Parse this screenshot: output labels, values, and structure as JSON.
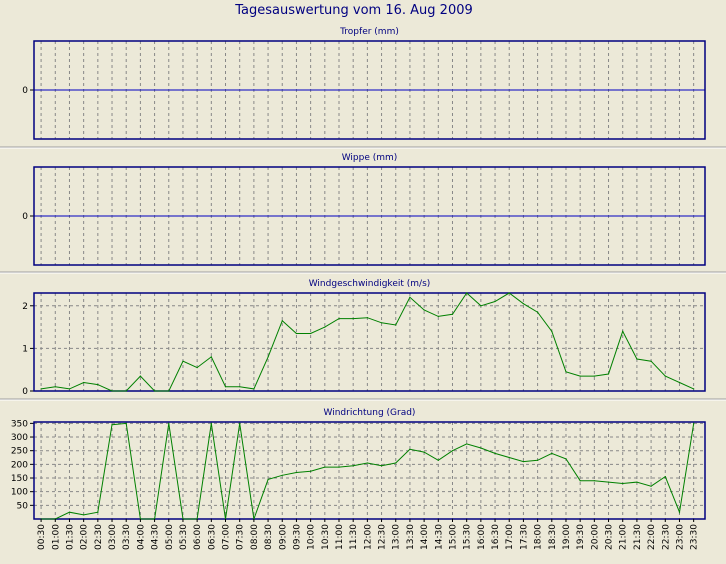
{
  "page_title": "Tagesauswertung vom 16. Aug 2009",
  "colors": {
    "background": "#ece9d8",
    "plot_bg": "#ece9d8",
    "frame": "#000080",
    "title": "#000080",
    "zero_line": "#0000c0",
    "series": "#008000",
    "grid": "#888888",
    "separator": "#ffffff"
  },
  "time_labels": [
    "00:30",
    "01:00",
    "01:30",
    "02:00",
    "02:30",
    "03:00",
    "03:30",
    "04:00",
    "04:30",
    "05:00",
    "05:30",
    "06:00",
    "06:30",
    "07:00",
    "07:30",
    "08:00",
    "08:30",
    "09:00",
    "09:30",
    "10:00",
    "10:30",
    "11:00",
    "11:30",
    "12:00",
    "12:30",
    "13:00",
    "13:30",
    "14:00",
    "14:30",
    "15:00",
    "15:30",
    "16:00",
    "16:30",
    "17:00",
    "17:30",
    "18:00",
    "18:30",
    "19:00",
    "19:30",
    "20:00",
    "20:30",
    "21:00",
    "21:30",
    "22:00",
    "22:30",
    "23:00",
    "23:30"
  ],
  "chart_data": [
    {
      "type": "line",
      "title": "Tropfer (mm)",
      "yticks": [
        0
      ],
      "ylim": [
        -1,
        1
      ],
      "grid": true,
      "series": [
        {
          "values": []
        }
      ]
    },
    {
      "type": "line",
      "title": "Wippe (mm)",
      "yticks": [
        0
      ],
      "ylim": [
        -1,
        1
      ],
      "grid": true,
      "series": [
        {
          "values": []
        }
      ]
    },
    {
      "type": "line",
      "title": "Windgeschwindigkeit (m/s)",
      "yticks": [
        2,
        1,
        0
      ],
      "ylim": [
        0,
        2.3
      ],
      "grid": true,
      "series": [
        {
          "values": [
            0.05,
            0.1,
            0.05,
            0.2,
            0.15,
            0.0,
            0.0,
            0.35,
            0.0,
            0.0,
            0.7,
            0.55,
            0.8,
            0.1,
            0.1,
            0.05,
            0.8,
            1.65,
            1.35,
            1.35,
            1.5,
            1.7,
            1.7,
            1.72,
            1.6,
            1.55,
            2.2,
            1.9,
            1.75,
            1.8,
            2.3,
            2.0,
            2.1,
            2.3,
            2.05,
            1.85,
            1.4,
            0.45,
            0.35,
            0.35,
            0.4,
            1.4,
            0.75,
            0.7,
            0.35,
            0.2,
            0.05
          ]
        }
      ]
    },
    {
      "type": "line",
      "title": "Windrichtung (Grad)",
      "yticks": [
        350,
        300,
        250,
        200,
        150,
        100,
        50
      ],
      "ylim": [
        0,
        355
      ],
      "grid": true,
      "series": [
        {
          "values": [
            0,
            0,
            25,
            15,
            25,
            345,
            350,
            0,
            0,
            350,
            0,
            0,
            350,
            0,
            350,
            0,
            145,
            160,
            170,
            175,
            190,
            190,
            195,
            205,
            195,
            205,
            255,
            245,
            215,
            250,
            275,
            260,
            240,
            225,
            210,
            215,
            240,
            220,
            140,
            140,
            135,
            130,
            135,
            120,
            155,
            25,
            350
          ]
        }
      ]
    }
  ]
}
